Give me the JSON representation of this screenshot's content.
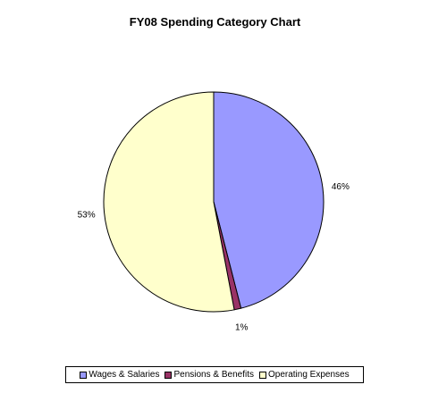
{
  "chart_data": {
    "type": "pie",
    "title": "FY08 Spending Category Chart",
    "slices": [
      {
        "name": "Wages & Salaries",
        "value": 46,
        "label": "46%",
        "color": "#9999ff"
      },
      {
        "name": "Pensions & Benefits",
        "value": 1,
        "label": "1%",
        "color": "#993366"
      },
      {
        "name": "Operating Expenses",
        "value": 53,
        "label": "53%",
        "color": "#ffffcc"
      }
    ],
    "start_angle_deg": 0,
    "direction": "clockwise",
    "legend_position": "bottom"
  }
}
